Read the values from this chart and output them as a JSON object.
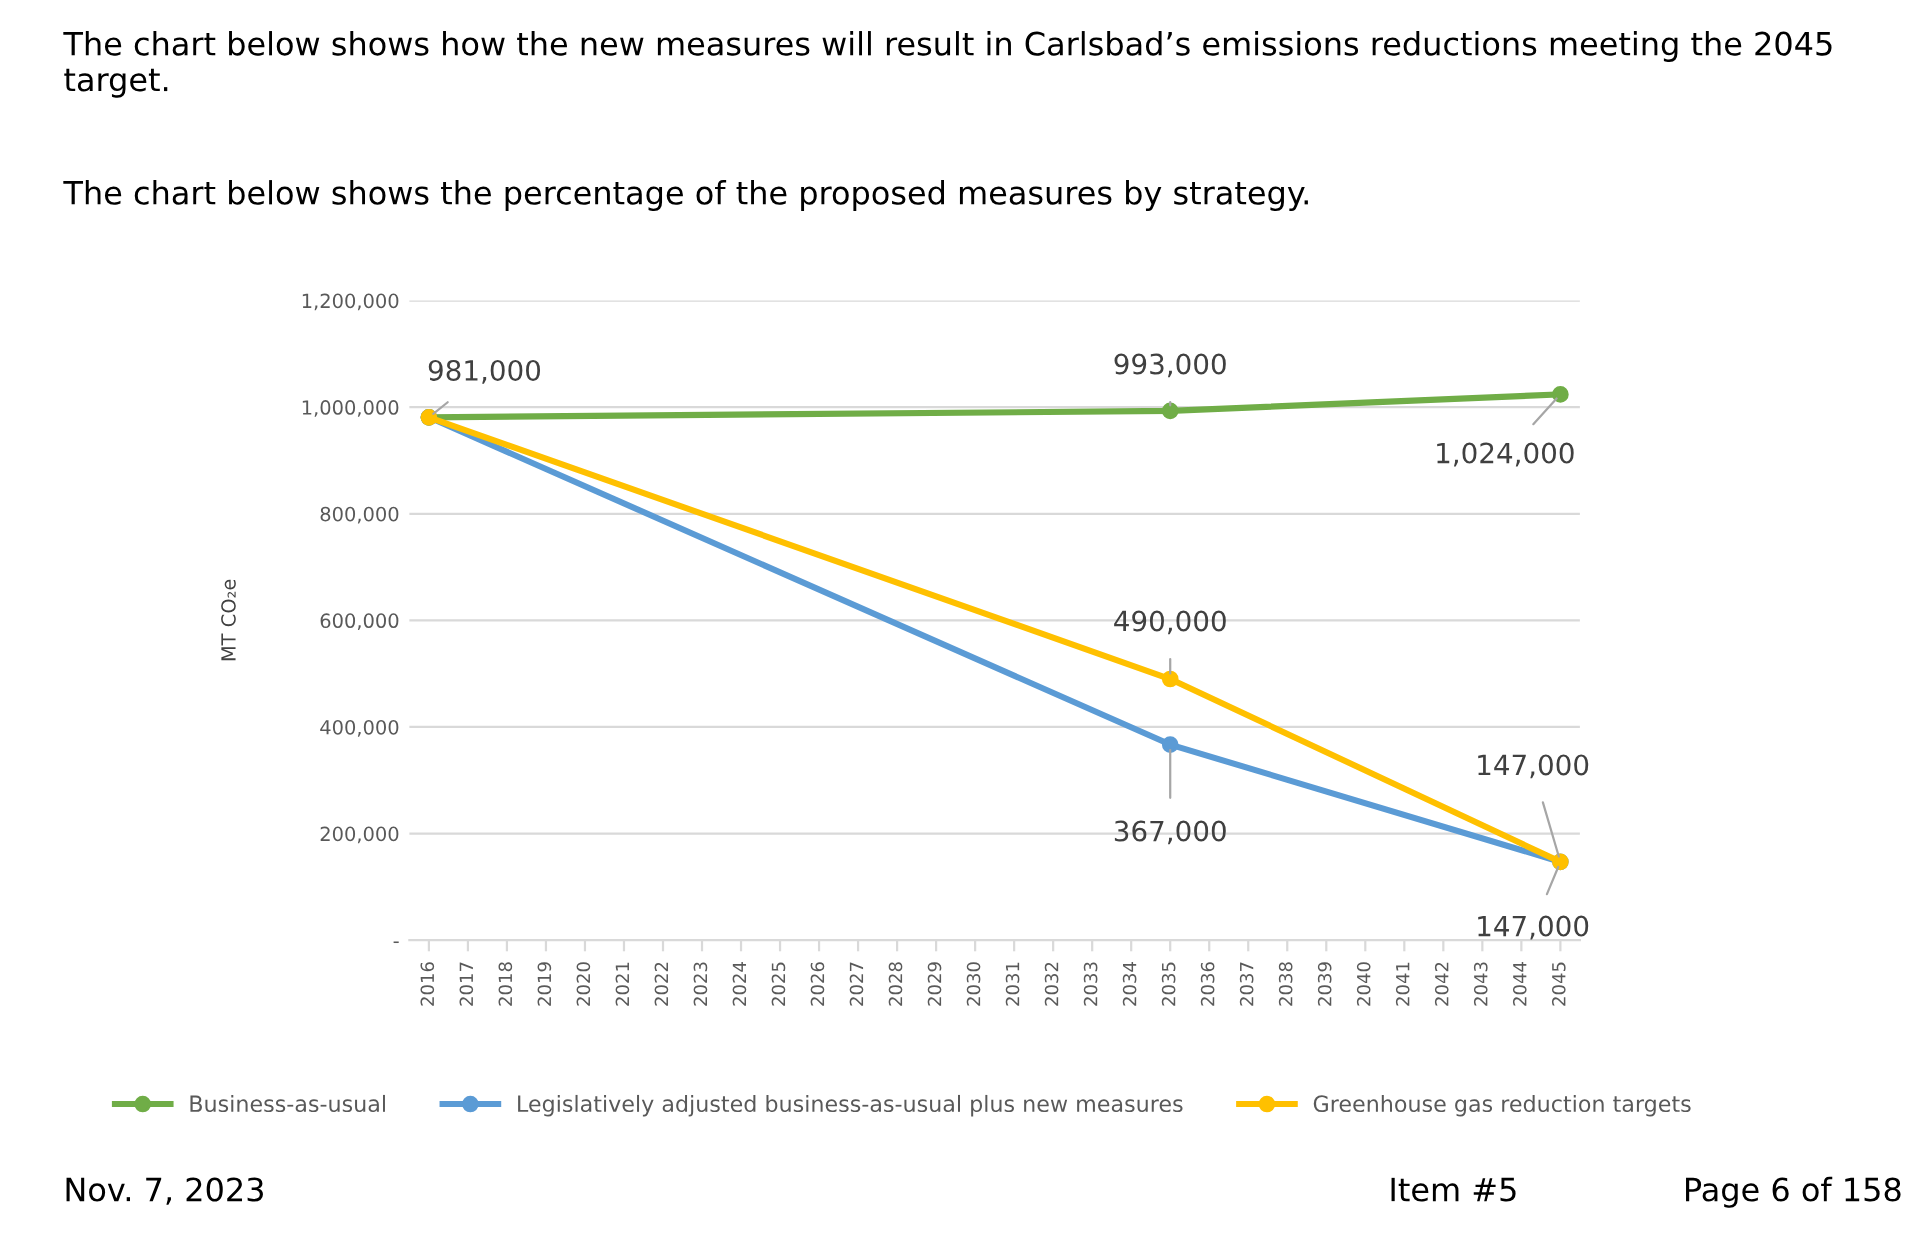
{
  "chart_data": {
    "type": "line",
    "title": "The chart below shows how the new measures will result in Carlsbad’s emissions reductions meeting the 2045 target.",
    "subtitle": "The chart below shows the percentage of the proposed measures by strategy.",
    "ylabel": "MT CO₂e",
    "xlim": [
      2015.5,
      2045.5
    ],
    "xticks": [
      2016,
      2017,
      2018,
      2019,
      2020,
      2021,
      2022,
      2023,
      2024,
      2025,
      2026,
      2027,
      2028,
      2029,
      2030,
      2031,
      2032,
      2033,
      2034,
      2035,
      2036,
      2037,
      2038,
      2039,
      2040,
      2041,
      2042,
      2043,
      2044,
      2045
    ],
    "series": [
      {
        "name": "Business-as-usual",
        "color": "#70ad47",
        "x": [
          2016,
          2035,
          2045
        ],
        "values": [
          981000,
          993000,
          1024000
        ],
        "value_labels": [
          "981,000",
          "993,000",
          "1,024,000"
        ]
      },
      {
        "name": "Legislatively adjusted business-as-usual plus new measures",
        "color": "#5b9bd5",
        "x": [
          2016,
          2035,
          2045
        ],
        "values": [
          981000,
          367000,
          147000
        ],
        "value_labels": [
          null,
          "367,000",
          "147,000"
        ]
      },
      {
        "name": "Greenhouse gas reduction targets",
        "color": "#ffc000",
        "x": [
          2016,
          2035,
          2045
        ],
        "values": [
          981000,
          490000,
          147000
        ],
        "value_labels": [
          null,
          "490,000",
          "147,000"
        ]
      }
    ],
    "ylim": [
      0,
      1200000
    ],
    "yticks": [
      {
        "value": 0,
        "label": "-"
      },
      {
        "value": 200000,
        "label": "200,000"
      },
      {
        "value": 400000,
        "label": "400,000"
      },
      {
        "value": 600000,
        "label": "600,000"
      },
      {
        "value": 800000,
        "label": "800,000"
      },
      {
        "value": 1000000,
        "label": "1,000,000"
      },
      {
        "value": 1200000,
        "label": "1,200,000"
      }
    ],
    "grid": "y",
    "legend": "bottom",
    "marker": "circle",
    "line_style": "solid",
    "annotations": [
      "Nov. 7, 2023",
      "Item #5",
      "Page 6 of 158"
    ]
  }
}
